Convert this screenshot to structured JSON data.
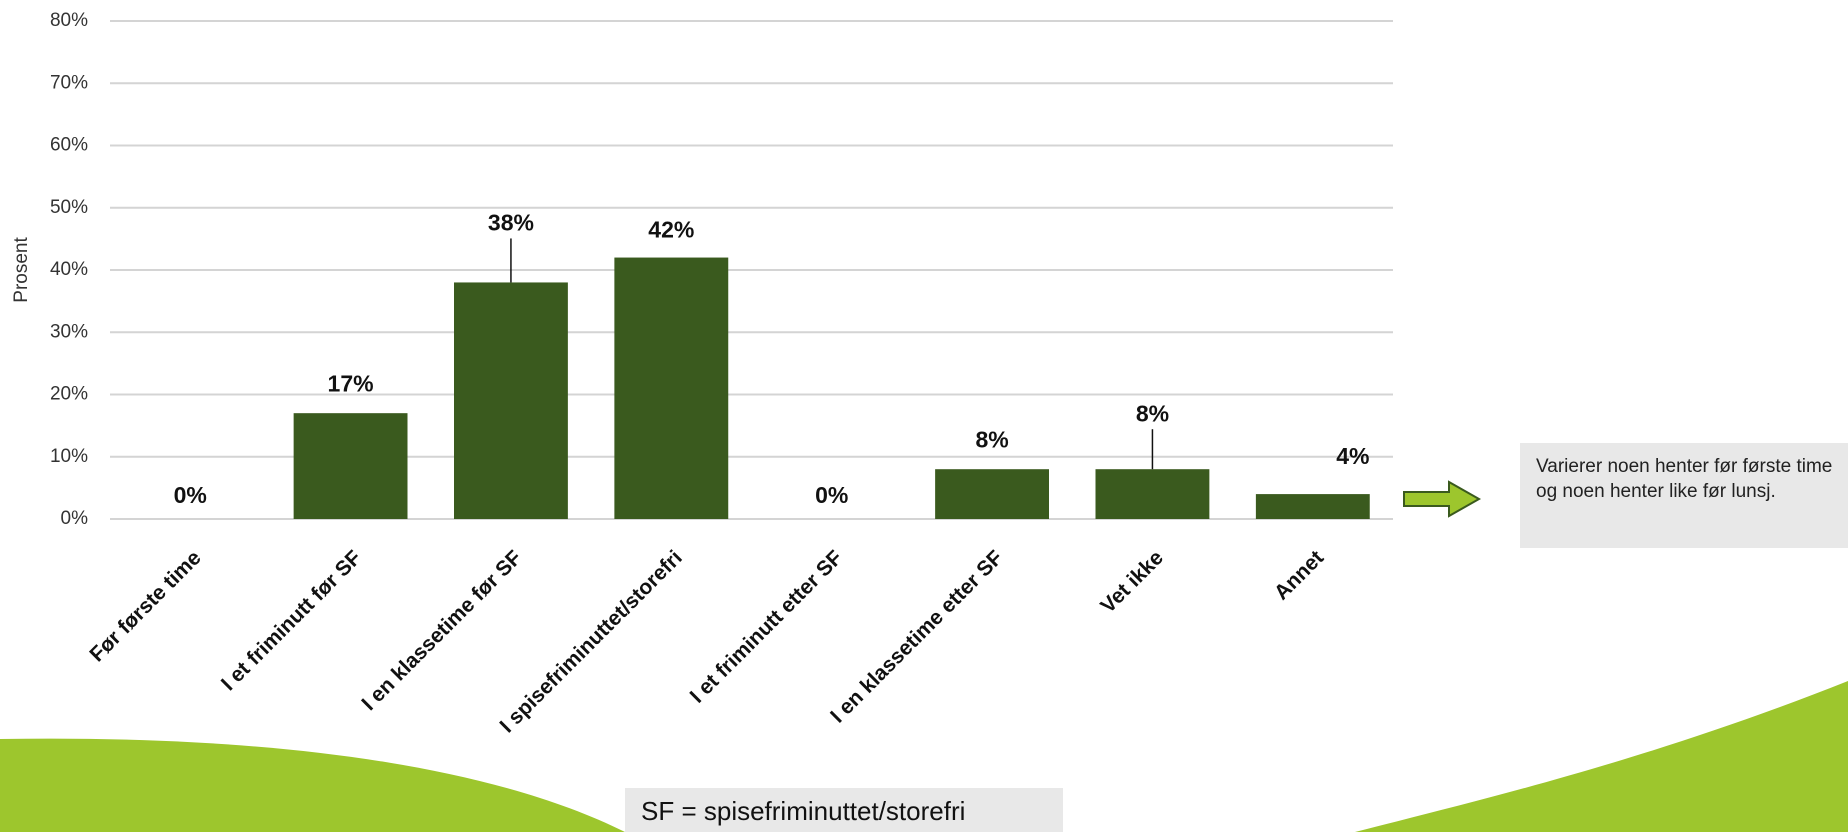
{
  "chart_data": {
    "type": "bar",
    "y_label": "Prosent",
    "categories": [
      "Før første time",
      "I et friminutt før SF",
      "I en klassetime før SF",
      "I spisefriminuttet/storefri",
      "I et friminutt etter SF",
      "I en klassetime etter SF",
      "Vet ikke",
      "Annet"
    ],
    "values": [
      0,
      17,
      38,
      42,
      0,
      8,
      8,
      4
    ],
    "value_labels": [
      "0%",
      "17%",
      "38%",
      "42%",
      "0%",
      "8%",
      "8%",
      "4%"
    ],
    "color": "#3a5a1e",
    "ylim": [
      0,
      80
    ],
    "yticks": [
      {
        "value": 0,
        "label": "0%"
      },
      {
        "value": 10,
        "label": "10%"
      },
      {
        "value": 20,
        "label": "20%"
      },
      {
        "value": 30,
        "label": "30%"
      },
      {
        "value": 40,
        "label": "40%"
      },
      {
        "value": 50,
        "label": "50%"
      },
      {
        "value": 60,
        "label": "60%"
      },
      {
        "value": 70,
        "label": "70%"
      },
      {
        "value": 80,
        "label": "80%"
      }
    ],
    "grid": true,
    "annotation": "Varierer noen henter før første time og noen henter like før lunsj.",
    "footnote": "SF = spisefriminuttet/storefri"
  }
}
